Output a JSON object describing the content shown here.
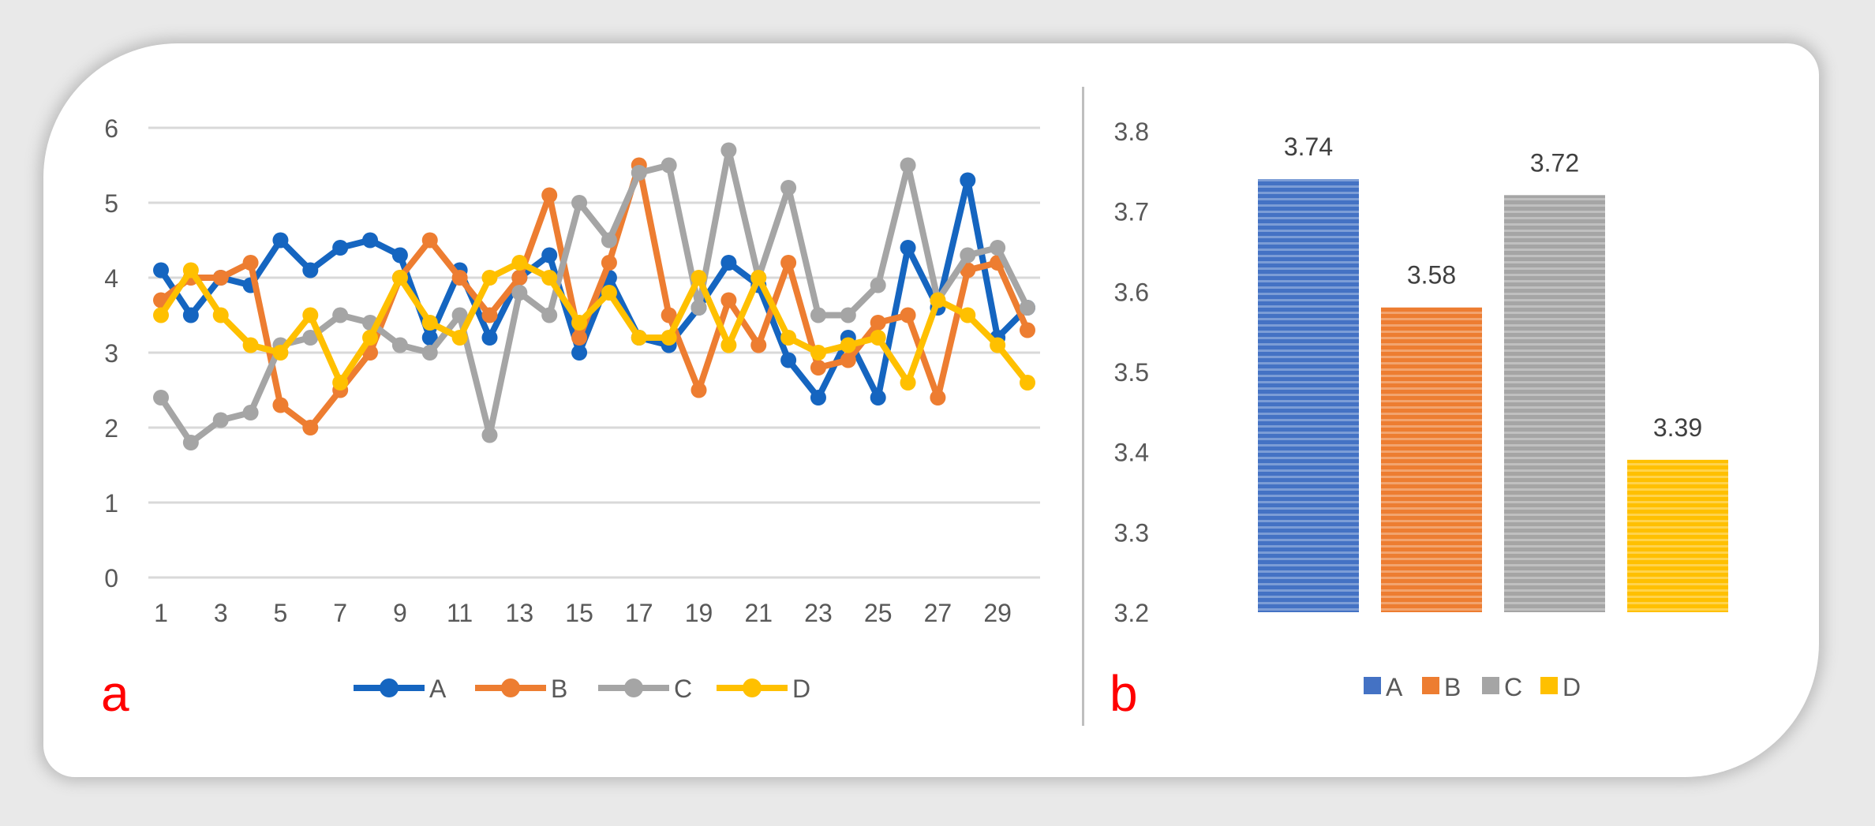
{
  "figure": {
    "panel_a_label": "a",
    "panel_b_label": "b"
  },
  "chart_data": [
    {
      "type": "line",
      "panel": "a",
      "x": [
        1,
        2,
        3,
        4,
        5,
        6,
        7,
        8,
        9,
        10,
        11,
        12,
        13,
        14,
        15,
        16,
        17,
        18,
        19,
        20,
        21,
        22,
        23,
        24,
        25,
        26,
        27,
        28,
        29,
        30
      ],
      "x_tick_labels": [
        "1",
        "3",
        "5",
        "7",
        "9",
        "11",
        "13",
        "15",
        "17",
        "19",
        "21",
        "23",
        "25",
        "27",
        "29"
      ],
      "y_tick_labels": [
        "0",
        "1",
        "2",
        "3",
        "4",
        "5",
        "6"
      ],
      "ylim": [
        0,
        6
      ],
      "grid": true,
      "legend_position": "bottom",
      "series": [
        {
          "name": "A",
          "color": "#1565c0",
          "values": [
            4.1,
            3.5,
            4.0,
            3.9,
            4.5,
            4.1,
            4.4,
            4.5,
            4.3,
            3.2,
            4.1,
            3.2,
            4.0,
            4.3,
            3.0,
            4.0,
            3.2,
            3.1,
            3.6,
            4.2,
            3.9,
            2.9,
            2.4,
            3.2,
            2.4,
            4.4,
            3.6,
            5.3,
            3.2,
            3.6
          ]
        },
        {
          "name": "B",
          "color": "#ed7d31",
          "values": [
            3.7,
            4.0,
            4.0,
            4.2,
            2.3,
            2.0,
            2.5,
            3.0,
            4.0,
            4.5,
            4.0,
            3.5,
            4.0,
            5.1,
            3.2,
            4.2,
            5.5,
            3.5,
            2.5,
            3.7,
            3.1,
            4.2,
            2.8,
            2.9,
            3.4,
            3.5,
            2.4,
            4.1,
            4.2,
            3.3
          ]
        },
        {
          "name": "C",
          "color": "#a5a5a5",
          "values": [
            2.4,
            1.8,
            2.1,
            2.2,
            3.1,
            3.2,
            3.5,
            3.4,
            3.1,
            3.0,
            3.5,
            1.9,
            3.8,
            3.5,
            5.0,
            4.5,
            5.4,
            5.5,
            3.6,
            5.7,
            4.0,
            5.2,
            3.5,
            3.5,
            3.9,
            5.5,
            3.7,
            4.3,
            4.4,
            3.6
          ]
        },
        {
          "name": "D",
          "color": "#ffc000",
          "values": [
            3.5,
            4.1,
            3.5,
            3.1,
            3.0,
            3.5,
            2.6,
            3.2,
            4.0,
            3.4,
            3.2,
            4.0,
            4.2,
            4.0,
            3.4,
            3.8,
            3.2,
            3.2,
            4.0,
            3.1,
            4.0,
            3.2,
            3.0,
            3.1,
            3.2,
            2.6,
            3.7,
            3.5,
            3.1,
            2.6
          ]
        }
      ]
    },
    {
      "type": "bar",
      "panel": "b",
      "categories": [
        "A",
        "B",
        "C",
        "D"
      ],
      "values": [
        3.74,
        3.58,
        3.72,
        3.39
      ],
      "data_labels": [
        "3.74",
        "3.58",
        "3.72",
        "3.39"
      ],
      "colors": [
        "#4472c4",
        "#ed7d31",
        "#a5a5a5",
        "#ffc000"
      ],
      "y_tick_labels": [
        "3.2",
        "3.3",
        "3.4",
        "3.5",
        "3.6",
        "3.7",
        "3.8"
      ],
      "ylim": [
        3.2,
        3.8
      ],
      "grid": false,
      "legend_position": "bottom"
    }
  ]
}
